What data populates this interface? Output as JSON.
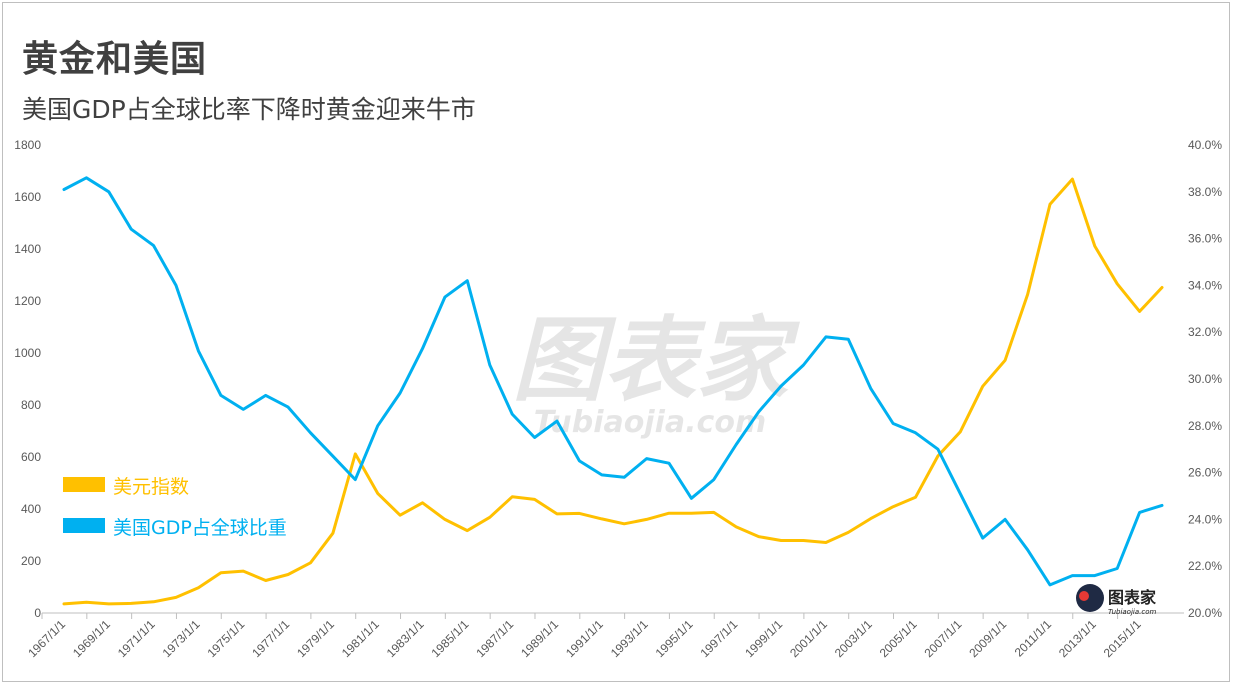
{
  "title": "黄金和美国",
  "subtitle": "美国GDP占全球比率下降时黄金迎来牛市",
  "watermark": {
    "main": "图表家",
    "sub": "Tubiaojia.com"
  },
  "logo": {
    "main": "图表家",
    "sub": "Tubiaojia.com"
  },
  "colors": {
    "gold": "#FFC000",
    "gdp": "#00B0F0",
    "grid": "#d9d9d9",
    "axis": "#bfbfbf",
    "text": "#595959"
  },
  "chart_data": {
    "type": "line",
    "x": [
      "1967/1/1",
      "1968/1/1",
      "1969/1/1",
      "1970/1/1",
      "1971/1/1",
      "1972/1/1",
      "1973/1/1",
      "1974/1/1",
      "1975/1/1",
      "1976/1/1",
      "1977/1/1",
      "1978/1/1",
      "1979/1/1",
      "1980/1/1",
      "1981/1/1",
      "1982/1/1",
      "1983/1/1",
      "1984/1/1",
      "1985/1/1",
      "1986/1/1",
      "1987/1/1",
      "1988/1/1",
      "1989/1/1",
      "1990/1/1",
      "1991/1/1",
      "1992/1/1",
      "1993/1/1",
      "1994/1/1",
      "1995/1/1",
      "1996/1/1",
      "1997/1/1",
      "1998/1/1",
      "1999/1/1",
      "2000/1/1",
      "2001/1/1",
      "2002/1/1",
      "2003/1/1",
      "2004/1/1",
      "2005/1/1",
      "2006/1/1",
      "2007/1/1",
      "2008/1/1",
      "2009/1/1",
      "2010/1/1",
      "2011/1/1",
      "2012/1/1",
      "2013/1/1",
      "2014/1/1",
      "2015/1/1",
      "2016/1/1"
    ],
    "xtick_labels": [
      "1967/1/1",
      "1969/1/1",
      "1971/1/1",
      "1973/1/1",
      "1975/1/1",
      "1977/1/1",
      "1979/1/1",
      "1981/1/1",
      "1983/1/1",
      "1985/1/1",
      "1987/1/1",
      "1989/1/1",
      "1991/1/1",
      "1993/1/1",
      "1995/1/1",
      "1997/1/1",
      "1999/1/1",
      "2001/1/1",
      "2003/1/1",
      "2005/1/1",
      "2007/1/1",
      "2009/1/1",
      "2011/1/1",
      "2013/1/1",
      "2015/1/1"
    ],
    "y_left": {
      "min": 0,
      "max": 1800,
      "ticks": [
        "0",
        "200",
        "400",
        "600",
        "800",
        "1000",
        "1200",
        "1400",
        "1600",
        "1800"
      ]
    },
    "y_right": {
      "min": 0.2,
      "max": 0.4,
      "ticks": [
        "20.0%",
        "22.0%",
        "24.0%",
        "26.0%",
        "28.0%",
        "30.0%",
        "32.0%",
        "34.0%",
        "36.0%",
        "38.0%",
        "40.0%"
      ]
    },
    "series": [
      {
        "name": "美元指数",
        "axis": "left",
        "color": "#FFC000",
        "values": [
          35,
          41,
          35,
          37,
          43,
          60,
          97,
          155,
          161,
          125,
          148,
          193,
          307,
          612,
          460,
          376,
          424,
          360,
          317,
          368,
          447,
          437,
          381,
          383,
          362,
          343,
          360,
          384,
          384,
          387,
          331,
          294,
          279,
          279,
          271,
          310,
          363,
          409,
          445,
          604,
          697,
          872,
          972,
          1225,
          1572,
          1669,
          1411,
          1266,
          1160,
          1252
        ]
      },
      {
        "name": "美国GDP占全球比重",
        "axis": "right",
        "color": "#00B0F0",
        "values": [
          0.381,
          0.386,
          0.38,
          0.364,
          0.357,
          0.34,
          0.312,
          0.293,
          0.287,
          0.293,
          0.288,
          0.277,
          0.267,
          0.257,
          0.28,
          0.294,
          0.313,
          0.335,
          0.342,
          0.306,
          0.285,
          0.275,
          0.282,
          0.265,
          0.259,
          0.258,
          0.266,
          0.264,
          0.249,
          0.257,
          0.272,
          0.286,
          0.297,
          0.306,
          0.318,
          0.317,
          0.296,
          0.281,
          0.277,
          0.27,
          0.251,
          0.232,
          0.24,
          0.227,
          0.212,
          0.216,
          0.216,
          0.219,
          0.243,
          0.246
        ]
      }
    ],
    "legend": {
      "placement": "left-middle",
      "entries": [
        "美元指数",
        "美国GDP占全球比重"
      ]
    },
    "grid": "vertical-ticks-only"
  }
}
